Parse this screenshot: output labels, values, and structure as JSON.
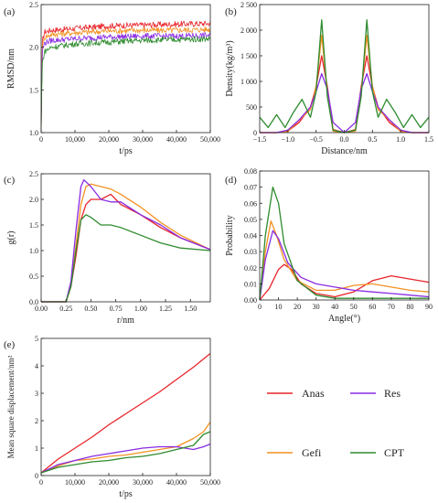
{
  "chart_data": [
    {
      "panel": "(a)",
      "type": "line",
      "xlabel": "t/ps",
      "ylabel": "RMSD/nm",
      "xlim": [
        0,
        50000
      ],
      "ylim": [
        1.0,
        2.5
      ],
      "xticks": [
        "0",
        "10,000",
        "20,000",
        "30,000",
        "40,000",
        "50,000"
      ],
      "xtick_values": [
        0,
        10000,
        20000,
        30000,
        40000,
        50000
      ],
      "yticks": [
        "1.0",
        "1.5",
        "2.0",
        "2.5"
      ],
      "ytick_values": [
        1.0,
        1.5,
        2.0,
        2.5
      ],
      "noise": 0.035,
      "series": [
        {
          "name": "Anas",
          "color": "#e8242a",
          "x": [
            0,
            300,
            1000,
            3000,
            10000,
            20000,
            30000,
            40000,
            50000
          ],
          "values": [
            1.0,
            2.05,
            2.18,
            2.2,
            2.22,
            2.25,
            2.26,
            2.27,
            2.28
          ]
        },
        {
          "name": "Gefi",
          "color": "#f39222",
          "x": [
            0,
            300,
            1000,
            3000,
            10000,
            20000,
            30000,
            40000,
            50000
          ],
          "values": [
            1.0,
            2.0,
            2.12,
            2.15,
            2.17,
            2.19,
            2.2,
            2.2,
            2.21
          ]
        },
        {
          "name": "Res",
          "color": "#8a2be2",
          "x": [
            0,
            300,
            1000,
            3000,
            10000,
            20000,
            30000,
            40000,
            50000
          ],
          "values": [
            1.0,
            1.95,
            2.05,
            2.08,
            2.1,
            2.12,
            2.13,
            2.13,
            2.14
          ]
        },
        {
          "name": "CPT",
          "color": "#2e8b2e",
          "x": [
            0,
            300,
            1000,
            3000,
            10000,
            20000,
            30000,
            40000,
            50000
          ],
          "values": [
            1.0,
            1.8,
            1.95,
            2.0,
            2.04,
            2.06,
            2.08,
            2.09,
            2.1
          ]
        }
      ]
    },
    {
      "panel": "(b)",
      "type": "line",
      "xlabel": "Distance/nm",
      "ylabel": "Density(kg/m³)",
      "xlim": [
        -1.5,
        1.5
      ],
      "ylim": [
        0,
        2500
      ],
      "xticks": [
        "−1.5",
        "−1.0",
        "−0.5",
        "0.0",
        "0.5",
        "1.0",
        "1.5"
      ],
      "xtick_values": [
        -1.5,
        -1.0,
        -0.5,
        0.0,
        0.5,
        1.0,
        1.5
      ],
      "yticks": [
        "0",
        "500",
        "1 000",
        "1 500",
        "2 000",
        "2 500"
      ],
      "ytick_values": [
        0,
        500,
        1000,
        1500,
        2000,
        2500
      ],
      "series": [
        {
          "name": "Anas",
          "color": "#e8242a",
          "x": [
            -1.5,
            -1.2,
            -1.0,
            -0.8,
            -0.6,
            -0.5,
            -0.4,
            -0.3,
            -0.2,
            0.0,
            0.2,
            0.3,
            0.4,
            0.5,
            0.6,
            0.8,
            1.0,
            1.2,
            1.5
          ],
          "values": [
            0,
            0,
            30,
            200,
            500,
            900,
            1500,
            900,
            60,
            0,
            60,
            900,
            1500,
            900,
            500,
            200,
            30,
            0,
            0
          ]
        },
        {
          "name": "Gefi",
          "color": "#f39222",
          "x": [
            -1.5,
            -1.2,
            -1.0,
            -0.8,
            -0.6,
            -0.5,
            -0.4,
            -0.3,
            -0.2,
            0.0,
            0.2,
            0.3,
            0.4,
            0.5,
            0.6,
            0.8,
            1.0,
            1.2,
            1.5
          ],
          "values": [
            0,
            0,
            20,
            250,
            450,
            900,
            1900,
            800,
            30,
            0,
            30,
            800,
            1900,
            900,
            450,
            250,
            20,
            0,
            0
          ]
        },
        {
          "name": "Res",
          "color": "#8a2be2",
          "x": [
            -1.5,
            -1.2,
            -1.0,
            -0.8,
            -0.6,
            -0.5,
            -0.4,
            -0.3,
            -0.2,
            0.0,
            0.2,
            0.3,
            0.4,
            0.5,
            0.6,
            0.8,
            1.0,
            1.2,
            1.5
          ],
          "values": [
            0,
            0,
            50,
            250,
            500,
            800,
            1150,
            850,
            200,
            0,
            200,
            850,
            1150,
            800,
            500,
            250,
            50,
            0,
            0
          ]
        },
        {
          "name": "CPT",
          "color": "#2e8b2e",
          "x": [
            -1.5,
            -1.35,
            -1.2,
            -1.05,
            -0.9,
            -0.75,
            -0.6,
            -0.5,
            -0.4,
            -0.3,
            -0.2,
            0.0,
            0.2,
            0.3,
            0.4,
            0.5,
            0.6,
            0.75,
            0.9,
            1.05,
            1.2,
            1.35,
            1.5
          ],
          "values": [
            300,
            100,
            350,
            100,
            400,
            650,
            300,
            800,
            2200,
            700,
            50,
            0,
            50,
            700,
            2200,
            800,
            300,
            650,
            400,
            100,
            350,
            100,
            300
          ]
        }
      ]
    },
    {
      "panel": "(c)",
      "type": "line",
      "xlabel": "r/nm",
      "ylabel": "g(r)",
      "xlim": [
        0,
        1.7
      ],
      "ylim": [
        0,
        2.5
      ],
      "xticks": [
        "0.00",
        "0.25",
        "0.50",
        "0.75",
        "1.00",
        "1.25",
        "1.50"
      ],
      "xtick_values": [
        0,
        0.25,
        0.5,
        0.75,
        1.0,
        1.25,
        1.5
      ],
      "yticks": [
        "0.0",
        "0.5",
        "1.0",
        "1.5",
        "2.0",
        "2.5"
      ],
      "ytick_values": [
        0,
        0.5,
        1.0,
        1.5,
        2.0,
        2.5
      ],
      "series": [
        {
          "name": "Anas",
          "color": "#e8242a",
          "x": [
            0,
            0.25,
            0.3,
            0.35,
            0.4,
            0.45,
            0.5,
            0.6,
            0.7,
            0.8,
            1.0,
            1.2,
            1.4,
            1.7
          ],
          "values": [
            0,
            0,
            0.3,
            0.9,
            1.6,
            1.9,
            2.0,
            2.0,
            2.1,
            1.9,
            1.7,
            1.45,
            1.25,
            1.02
          ]
        },
        {
          "name": "Gefi",
          "color": "#f39222",
          "x": [
            0,
            0.25,
            0.3,
            0.35,
            0.4,
            0.45,
            0.5,
            0.6,
            0.7,
            0.8,
            1.0,
            1.2,
            1.4,
            1.7
          ],
          "values": [
            0,
            0,
            0.3,
            1.1,
            1.9,
            2.25,
            2.3,
            2.25,
            2.2,
            2.1,
            1.85,
            1.55,
            1.3,
            1.02
          ]
        },
        {
          "name": "Res",
          "color": "#8a2be2",
          "x": [
            0,
            0.25,
            0.3,
            0.35,
            0.4,
            0.43,
            0.5,
            0.6,
            0.7,
            0.8,
            1.0,
            1.2,
            1.4,
            1.7
          ],
          "values": [
            0,
            0,
            0.4,
            1.4,
            2.25,
            2.38,
            2.25,
            2.0,
            1.95,
            1.95,
            1.7,
            1.5,
            1.25,
            1.02
          ]
        },
        {
          "name": "CPT",
          "color": "#2e8b2e",
          "x": [
            0,
            0.25,
            0.3,
            0.35,
            0.4,
            0.45,
            0.5,
            0.6,
            0.7,
            0.8,
            1.0,
            1.2,
            1.4,
            1.7
          ],
          "values": [
            0,
            0,
            0.3,
            1.0,
            1.6,
            1.7,
            1.65,
            1.5,
            1.5,
            1.45,
            1.3,
            1.15,
            1.05,
            1.0
          ]
        }
      ]
    },
    {
      "panel": "(d)",
      "type": "line",
      "xlabel": "Angle(°)",
      "ylabel": "Probability",
      "xlim": [
        0,
        90
      ],
      "ylim": [
        0,
        0.08
      ],
      "xticks": [
        "0",
        "10",
        "20",
        "30",
        "40",
        "50",
        "60",
        "70",
        "80",
        "90"
      ],
      "xtick_values": [
        0,
        10,
        20,
        30,
        40,
        50,
        60,
        70,
        80,
        90
      ],
      "yticks": [
        "0.00",
        "0.01",
        "0.02",
        "0.03",
        "0.04",
        "0.05",
        "0.06",
        "0.07",
        "0.08"
      ],
      "ytick_values": [
        0,
        0.01,
        0.02,
        0.03,
        0.04,
        0.05,
        0.06,
        0.07,
        0.08
      ],
      "series": [
        {
          "name": "Anas",
          "color": "#e8242a",
          "x": [
            0,
            5,
            10,
            13,
            17,
            22,
            30,
            40,
            50,
            60,
            70,
            80,
            90
          ],
          "values": [
            0,
            0.007,
            0.019,
            0.022,
            0.019,
            0.01,
            0.004,
            0.002,
            0.005,
            0.012,
            0.015,
            0.013,
            0.011
          ]
        },
        {
          "name": "Gefi",
          "color": "#f39222",
          "x": [
            0,
            3,
            6,
            9,
            13,
            20,
            30,
            40,
            50,
            60,
            70,
            80,
            90
          ],
          "values": [
            0,
            0.03,
            0.049,
            0.04,
            0.025,
            0.012,
            0.006,
            0.006,
            0.009,
            0.01,
            0.008,
            0.006,
            0.005
          ]
        },
        {
          "name": "Res",
          "color": "#8a2be2",
          "x": [
            0,
            3,
            7,
            10,
            15,
            22,
            30,
            40,
            50,
            60,
            70,
            80,
            90
          ],
          "values": [
            0,
            0.025,
            0.043,
            0.038,
            0.023,
            0.014,
            0.01,
            0.008,
            0.006,
            0.005,
            0.004,
            0.003,
            0.002
          ]
        },
        {
          "name": "CPT",
          "color": "#2e8b2e",
          "x": [
            0,
            3,
            7,
            10,
            13,
            20,
            30,
            40,
            50,
            60,
            70,
            80,
            90
          ],
          "values": [
            0,
            0.04,
            0.07,
            0.06,
            0.035,
            0.012,
            0.003,
            0.001,
            0.001,
            0.001,
            0.001,
            0.001,
            0.001
          ]
        }
      ]
    },
    {
      "panel": "(e)",
      "type": "line",
      "xlabel": "t/ps",
      "ylabel": "Mean square displacement/nm²",
      "xlim": [
        0,
        50000
      ],
      "ylim": [
        0,
        5
      ],
      "xticks": [
        "0",
        "10,000",
        "20,000",
        "30,000",
        "40,000",
        "50,000"
      ],
      "xtick_values": [
        0,
        10000,
        20000,
        30000,
        40000,
        50000
      ],
      "yticks": [
        "0",
        "1",
        "2",
        "3",
        "4",
        "5"
      ],
      "ytick_values": [
        0,
        1,
        2,
        3,
        4,
        5
      ],
      "series": [
        {
          "name": "Anas",
          "color": "#e8242a",
          "x": [
            0,
            5000,
            10000,
            15000,
            20000,
            25000,
            30000,
            35000,
            40000,
            45000,
            50000
          ],
          "values": [
            0.1,
            0.6,
            1.0,
            1.4,
            1.85,
            2.25,
            2.65,
            3.05,
            3.5,
            3.95,
            4.45
          ]
        },
        {
          "name": "Gefi",
          "color": "#f39222",
          "x": [
            0,
            5000,
            10000,
            15000,
            20000,
            25000,
            30000,
            35000,
            40000,
            45000,
            48000,
            50000
          ],
          "values": [
            0.1,
            0.35,
            0.55,
            0.6,
            0.7,
            0.75,
            0.85,
            0.95,
            1.05,
            1.35,
            1.6,
            1.95
          ]
        },
        {
          "name": "Res",
          "color": "#8a2be2",
          "x": [
            0,
            5000,
            10000,
            15000,
            20000,
            25000,
            30000,
            35000,
            40000,
            45000,
            48000,
            50000
          ],
          "values": [
            0.1,
            0.4,
            0.55,
            0.7,
            0.8,
            0.9,
            1.0,
            1.05,
            1.05,
            0.95,
            1.05,
            1.15
          ]
        },
        {
          "name": "CPT",
          "color": "#2e8b2e",
          "x": [
            0,
            5000,
            10000,
            15000,
            20000,
            25000,
            30000,
            35000,
            40000,
            45000,
            48000,
            50000
          ],
          "values": [
            0.1,
            0.3,
            0.4,
            0.5,
            0.55,
            0.65,
            0.7,
            0.8,
            0.95,
            1.1,
            1.5,
            1.6
          ]
        }
      ]
    }
  ],
  "legend": [
    {
      "name": "Anas",
      "color": "#e8242a"
    },
    {
      "name": "Res",
      "color": "#8a2be2"
    },
    {
      "name": "Gefi",
      "color": "#f39222"
    },
    {
      "name": "CPT",
      "color": "#2e8b2e"
    }
  ]
}
